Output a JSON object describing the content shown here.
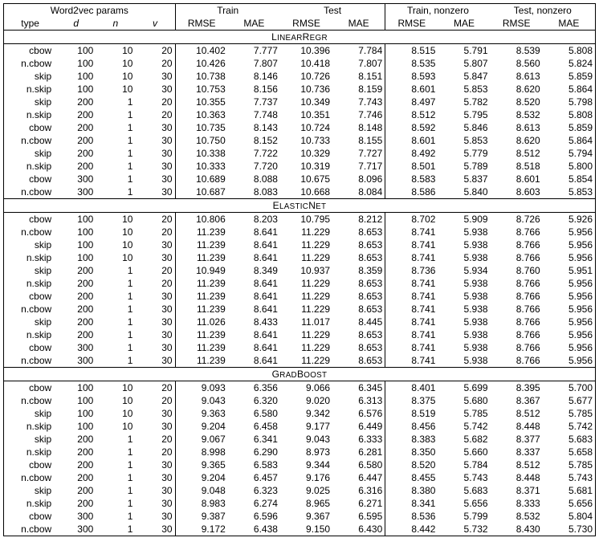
{
  "headers": {
    "group1": "Word2vec params",
    "group2": "Train",
    "group3": "Test",
    "group4": "Train, nonzero",
    "group5": "Test, nonzero",
    "type": "type",
    "d": "d",
    "n": "n",
    "v": "v",
    "rmse": "RMSE",
    "mae": "MAE"
  },
  "sections": [
    {
      "title": "LinearRegr",
      "rows": [
        [
          "cbow",
          "100",
          "10",
          "20",
          "10.402",
          "7.777",
          "10.396",
          "7.784",
          "8.515",
          "5.791",
          "8.539",
          "5.808"
        ],
        [
          "n.cbow",
          "100",
          "10",
          "20",
          "10.426",
          "7.807",
          "10.418",
          "7.807",
          "8.535",
          "5.807",
          "8.560",
          "5.824"
        ],
        [
          "skip",
          "100",
          "10",
          "30",
          "10.738",
          "8.146",
          "10.726",
          "8.151",
          "8.593",
          "5.847",
          "8.613",
          "5.859"
        ],
        [
          "n.skip",
          "100",
          "10",
          "30",
          "10.753",
          "8.156",
          "10.736",
          "8.159",
          "8.601",
          "5.853",
          "8.620",
          "5.864"
        ],
        [
          "skip",
          "200",
          "1",
          "20",
          "10.355",
          "7.737",
          "10.349",
          "7.743",
          "8.497",
          "5.782",
          "8.520",
          "5.798"
        ],
        [
          "n.skip",
          "200",
          "1",
          "20",
          "10.363",
          "7.748",
          "10.351",
          "7.746",
          "8.512",
          "5.795",
          "8.532",
          "5.808"
        ],
        [
          "cbow",
          "200",
          "1",
          "30",
          "10.735",
          "8.143",
          "10.724",
          "8.148",
          "8.592",
          "5.846",
          "8.613",
          "5.859"
        ],
        [
          "n.cbow",
          "200",
          "1",
          "30",
          "10.750",
          "8.152",
          "10.733",
          "8.155",
          "8.601",
          "5.853",
          "8.620",
          "5.864"
        ],
        [
          "skip",
          "200",
          "1",
          "30",
          "10.338",
          "7.722",
          "10.329",
          "7.727",
          "8.492",
          "5.779",
          "8.512",
          "5.794"
        ],
        [
          "n.skip",
          "200",
          "1",
          "30",
          "10.333",
          "7.720",
          "10.319",
          "7.717",
          "8.501",
          "5.789",
          "8.518",
          "5.800"
        ],
        [
          "cbow",
          "300",
          "1",
          "30",
          "10.689",
          "8.088",
          "10.675",
          "8.096",
          "8.583",
          "5.837",
          "8.601",
          "5.854"
        ],
        [
          "n.cbow",
          "300",
          "1",
          "30",
          "10.687",
          "8.083",
          "10.668",
          "8.084",
          "8.586",
          "5.840",
          "8.603",
          "5.853"
        ]
      ]
    },
    {
      "title": "ElasticNet",
      "rows": [
        [
          "cbow",
          "100",
          "10",
          "20",
          "10.806",
          "8.203",
          "10.795",
          "8.212",
          "8.702",
          "5.909",
          "8.726",
          "5.926"
        ],
        [
          "n.cbow",
          "100",
          "10",
          "20",
          "11.239",
          "8.641",
          "11.229",
          "8.653",
          "8.741",
          "5.938",
          "8.766",
          "5.956"
        ],
        [
          "skip",
          "100",
          "10",
          "30",
          "11.239",
          "8.641",
          "11.229",
          "8.653",
          "8.741",
          "5.938",
          "8.766",
          "5.956"
        ],
        [
          "n.skip",
          "100",
          "10",
          "30",
          "11.239",
          "8.641",
          "11.229",
          "8.653",
          "8.741",
          "5.938",
          "8.766",
          "5.956"
        ],
        [
          "skip",
          "200",
          "1",
          "20",
          "10.949",
          "8.349",
          "10.937",
          "8.359",
          "8.736",
          "5.934",
          "8.760",
          "5.951"
        ],
        [
          "n.skip",
          "200",
          "1",
          "20",
          "11.239",
          "8.641",
          "11.229",
          "8.653",
          "8.741",
          "5.938",
          "8.766",
          "5.956"
        ],
        [
          "cbow",
          "200",
          "1",
          "30",
          "11.239",
          "8.641",
          "11.229",
          "8.653",
          "8.741",
          "5.938",
          "8.766",
          "5.956"
        ],
        [
          "n.cbow",
          "200",
          "1",
          "30",
          "11.239",
          "8.641",
          "11.229",
          "8.653",
          "8.741",
          "5.938",
          "8.766",
          "5.956"
        ],
        [
          "skip",
          "200",
          "1",
          "30",
          "11.026",
          "8.433",
          "11.017",
          "8.445",
          "8.741",
          "5.938",
          "8.766",
          "5.956"
        ],
        [
          "n.skip",
          "200",
          "1",
          "30",
          "11.239",
          "8.641",
          "11.229",
          "8.653",
          "8.741",
          "5.938",
          "8.766",
          "5.956"
        ],
        [
          "cbow",
          "300",
          "1",
          "30",
          "11.239",
          "8.641",
          "11.229",
          "8.653",
          "8.741",
          "5.938",
          "8.766",
          "5.956"
        ],
        [
          "n.cbow",
          "300",
          "1",
          "30",
          "11.239",
          "8.641",
          "11.229",
          "8.653",
          "8.741",
          "5.938",
          "8.766",
          "5.956"
        ]
      ]
    },
    {
      "title": "GradBoost",
      "rows": [
        [
          "cbow",
          "100",
          "10",
          "20",
          "9.093",
          "6.356",
          "9.066",
          "6.345",
          "8.401",
          "5.699",
          "8.395",
          "5.700"
        ],
        [
          "n.cbow",
          "100",
          "10",
          "20",
          "9.043",
          "6.320",
          "9.020",
          "6.313",
          "8.375",
          "5.680",
          "8.367",
          "5.677"
        ],
        [
          "skip",
          "100",
          "10",
          "30",
          "9.363",
          "6.580",
          "9.342",
          "6.576",
          "8.519",
          "5.785",
          "8.512",
          "5.785"
        ],
        [
          "n.skip",
          "100",
          "10",
          "30",
          "9.204",
          "6.458",
          "9.177",
          "6.449",
          "8.456",
          "5.742",
          "8.448",
          "5.742"
        ],
        [
          "skip",
          "200",
          "1",
          "20",
          "9.067",
          "6.341",
          "9.043",
          "6.333",
          "8.383",
          "5.682",
          "8.377",
          "5.683"
        ],
        [
          "n.skip",
          "200",
          "1",
          "20",
          "8.998",
          "6.290",
          "8.973",
          "6.281",
          "8.350",
          "5.660",
          "8.337",
          "5.658"
        ],
        [
          "cbow",
          "200",
          "1",
          "30",
          "9.365",
          "6.583",
          "9.344",
          "6.580",
          "8.520",
          "5.784",
          "8.512",
          "5.785"
        ],
        [
          "n.cbow",
          "200",
          "1",
          "30",
          "9.204",
          "6.457",
          "9.176",
          "6.447",
          "8.455",
          "5.743",
          "8.448",
          "5.743"
        ],
        [
          "skip",
          "200",
          "1",
          "30",
          "9.048",
          "6.323",
          "9.025",
          "6.316",
          "8.380",
          "5.683",
          "8.371",
          "5.681"
        ],
        [
          "n.skip",
          "200",
          "1",
          "30",
          "8.983",
          "6.274",
          "8.965",
          "6.271",
          "8.341",
          "5.656",
          "8.333",
          "5.656"
        ],
        [
          "cbow",
          "300",
          "1",
          "30",
          "9.387",
          "6.596",
          "9.367",
          "6.595",
          "8.536",
          "5.799",
          "8.532",
          "5.804"
        ],
        [
          "n.cbow",
          "300",
          "1",
          "30",
          "9.172",
          "6.438",
          "9.150",
          "6.430",
          "8.442",
          "5.732",
          "8.430",
          "5.730"
        ]
      ]
    }
  ]
}
